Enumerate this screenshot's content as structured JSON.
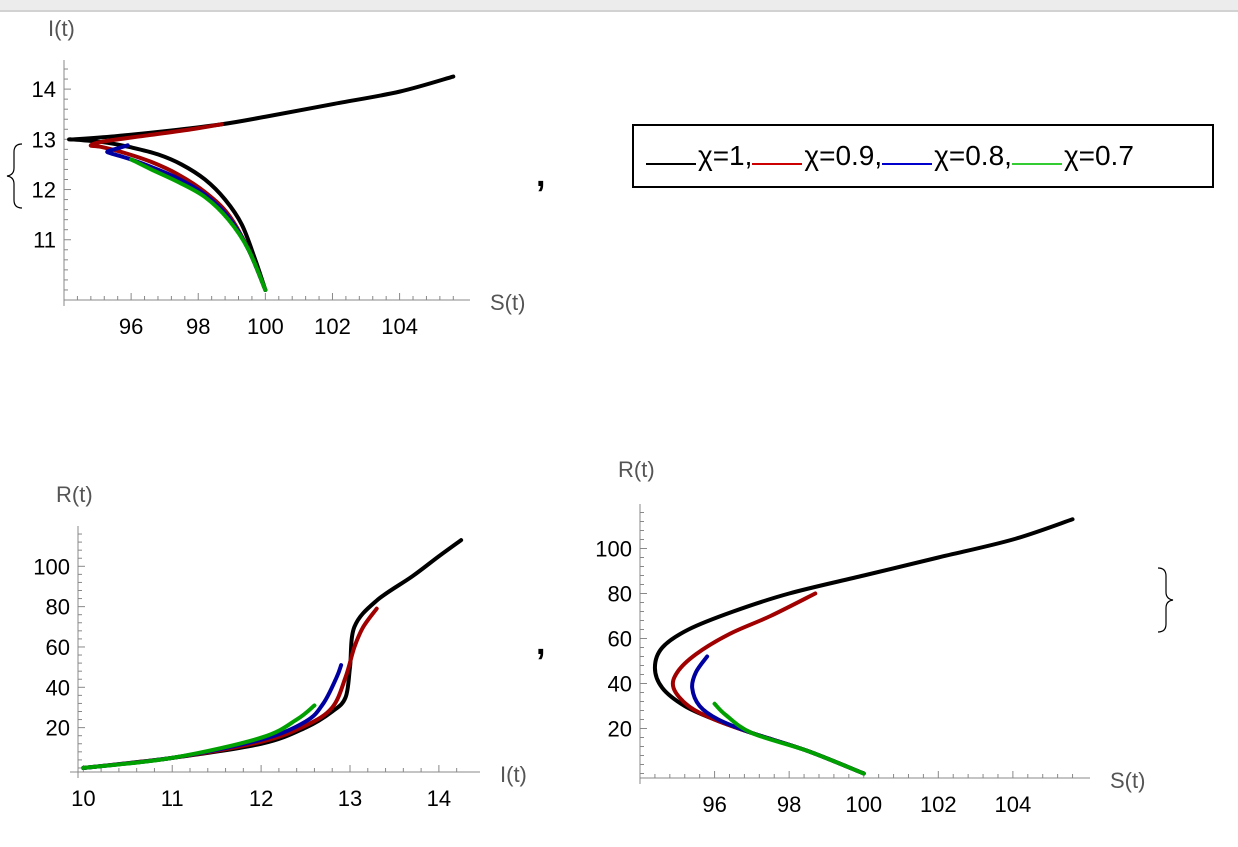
{
  "separators": [
    ",",
    ","
  ],
  "legend": {
    "items": [
      {
        "label": "χ=1,",
        "color": "#000000"
      },
      {
        "label": "χ=0.9,",
        "color": "#a00000"
      },
      {
        "label": "χ=0.8,",
        "color": "#0000a0"
      },
      {
        "label": "χ=0.7",
        "color": "#00c000"
      }
    ]
  },
  "chart_data": [
    {
      "type": "line",
      "xlabel": "S(t)",
      "ylabel": "I(t)",
      "xlim": [
        94.0,
        105.8
      ],
      "ylim": [
        9.8,
        14.5
      ],
      "xticks": [
        96,
        98,
        100,
        102,
        104
      ],
      "yticks": [
        11,
        12,
        13,
        14
      ],
      "series": [
        {
          "name": "χ=1",
          "color": "#000000",
          "x": [
            100.0,
            99.7,
            99.3,
            98.8,
            98.2,
            97.5,
            96.8,
            96.0,
            95.3,
            94.6,
            94.2,
            94.3,
            95.5,
            97.0,
            98.7,
            100.0,
            102.0,
            104.0,
            105.6
          ],
          "y": [
            10.0,
            10.6,
            11.3,
            11.8,
            12.2,
            12.5,
            12.7,
            12.84,
            12.93,
            12.98,
            13.0,
            13.0,
            13.06,
            13.16,
            13.3,
            13.45,
            13.7,
            13.95,
            14.25
          ]
        },
        {
          "name": "χ=0.9",
          "color": "#a00000",
          "x": [
            100.0,
            99.5,
            98.9,
            98.2,
            97.4,
            96.6,
            95.8,
            95.1,
            94.8,
            95.2,
            96.5,
            97.8,
            98.7
          ],
          "y": [
            10.0,
            10.8,
            11.5,
            11.95,
            12.3,
            12.55,
            12.73,
            12.85,
            12.88,
            12.96,
            13.08,
            13.2,
            13.3
          ]
        },
        {
          "name": "χ=0.8",
          "color": "#0000a0",
          "x": [
            100.0,
            99.5,
            98.9,
            98.2,
            97.4,
            96.6,
            95.9,
            95.4,
            95.3,
            95.6,
            95.9
          ],
          "y": [
            10.0,
            10.8,
            11.45,
            11.9,
            12.22,
            12.45,
            12.62,
            12.72,
            12.76,
            12.82,
            12.88
          ]
        },
        {
          "name": "χ=0.7",
          "color": "#00a000",
          "x": [
            100.0,
            99.5,
            98.9,
            98.2,
            97.4,
            96.6,
            96.0
          ],
          "y": [
            10.0,
            10.8,
            11.4,
            11.85,
            12.15,
            12.4,
            12.6
          ]
        }
      ]
    },
    {
      "type": "line",
      "xlabel": "I(t)",
      "ylabel": "R(t)",
      "xlim": [
        9.85,
        14.35
      ],
      "ylim": [
        -2,
        118
      ],
      "xticks": [
        10,
        11,
        12,
        13,
        14
      ],
      "yticks": [
        20,
        40,
        60,
        80,
        100
      ],
      "series": [
        {
          "name": "χ=1",
          "color": "#000000",
          "x": [
            10.0,
            11.0,
            12.0,
            12.5,
            12.8,
            12.95,
            13.0,
            13.05,
            13.3,
            13.7,
            14.0,
            14.25
          ],
          "y": [
            0,
            5,
            12,
            20,
            28,
            35,
            50,
            70,
            83,
            95,
            105,
            113
          ]
        },
        {
          "name": "χ=0.9",
          "color": "#a00000",
          "x": [
            10.0,
            11.0,
            12.0,
            12.5,
            12.8,
            12.95,
            13.05,
            13.15,
            13.3
          ],
          "y": [
            0,
            5,
            13,
            21,
            30,
            45,
            60,
            70,
            79
          ]
        },
        {
          "name": "χ=0.8",
          "color": "#0000a0",
          "x": [
            10.0,
            11.0,
            12.0,
            12.5,
            12.7,
            12.85,
            12.9
          ],
          "y": [
            0,
            5,
            14,
            23,
            32,
            45,
            51
          ]
        },
        {
          "name": "χ=0.7",
          "color": "#00a000",
          "x": [
            10.0,
            11.0,
            12.0,
            12.4,
            12.6
          ],
          "y": [
            0,
            5,
            15,
            24,
            31
          ]
        }
      ]
    },
    {
      "type": "line",
      "xlabel": "S(t)",
      "ylabel": "R(t)",
      "xlim": [
        94.0,
        105.8
      ],
      "ylim": [
        -2,
        118
      ],
      "xticks": [
        96,
        98,
        100,
        102,
        104
      ],
      "yticks": [
        20,
        40,
        60,
        80,
        100
      ],
      "series": [
        {
          "name": "χ=1",
          "color": "#000000",
          "x": [
            100.0,
            98.5,
            97.0,
            96.0,
            95.2,
            94.6,
            94.4,
            94.6,
            95.3,
            96.5,
            98.0,
            100.0,
            102.0,
            104.0,
            105.6
          ],
          "y": [
            0,
            10,
            18,
            24,
            30,
            38,
            47,
            56,
            64,
            72,
            80,
            88,
            96,
            104,
            113
          ]
        },
        {
          "name": "χ=0.9",
          "color": "#a00000",
          "x": [
            100.0,
            98.5,
            97.0,
            96.0,
            95.3,
            94.9,
            95.0,
            95.5,
            96.4,
            97.5,
            98.7
          ],
          "y": [
            0,
            10,
            18,
            24,
            30,
            38,
            45,
            53,
            62,
            70,
            80
          ]
        },
        {
          "name": "χ=0.8",
          "color": "#0000a0",
          "x": [
            100.0,
            98.5,
            97.0,
            96.1,
            95.6,
            95.4,
            95.5,
            95.8
          ],
          "y": [
            0,
            10,
            18,
            24,
            30,
            38,
            45,
            52
          ]
        },
        {
          "name": "χ=0.7",
          "color": "#00a000",
          "x": [
            100.0,
            98.5,
            97.0,
            96.3,
            96.0
          ],
          "y": [
            0,
            10,
            18,
            26,
            31
          ]
        }
      ]
    }
  ]
}
